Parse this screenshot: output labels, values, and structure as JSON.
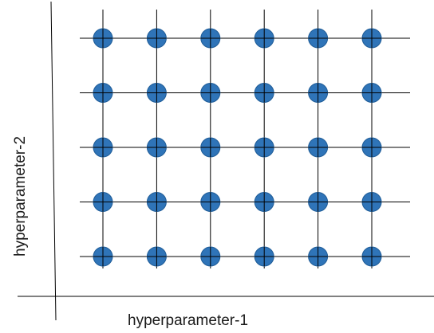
{
  "diagram": {
    "x_axis_label": "hyperparameter-1",
    "y_axis_label": "hyperparameter-2",
    "grid": {
      "columns": 6,
      "rows": 5
    },
    "point_color": "#2f74b8",
    "point_edge_color": "#1f5c97",
    "line_color": "#000000"
  }
}
